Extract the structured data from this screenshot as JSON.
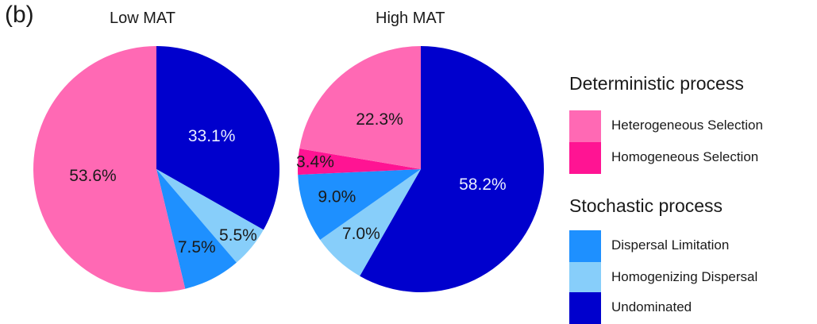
{
  "panel_label": "(b)",
  "colors": {
    "heterogeneous_selection": "#ff69b4",
    "homogeneous_selection": "#ff1493",
    "dispersal_limitation": "#1e90ff",
    "homogenizing_dispersal": "#87cefa",
    "undominated": "#0000cd"
  },
  "legend": {
    "deterministic_title": "Deterministic process",
    "stochastic_title": "Stochastic process",
    "items": [
      {
        "label": "Heterogeneous Selection",
        "color": "#ff69b4"
      },
      {
        "label": "Homogeneous Selection",
        "color": "#ff1493"
      },
      {
        "label": "Dispersal Limitation",
        "color": "#1e90ff"
      },
      {
        "label": "Homogenizing Dispersal",
        "color": "#87cefa"
      },
      {
        "label": "Undominated",
        "color": "#0000cd"
      }
    ]
  },
  "chart_data": [
    {
      "type": "pie",
      "title": "Low MAT",
      "slices": [
        {
          "category": "Undominated",
          "value": 33.1,
          "label": "33.1%",
          "color": "#0000cd",
          "label_color": "#e8eeff"
        },
        {
          "category": "Homogenizing Dispersal",
          "value": 5.5,
          "label": "5.5%",
          "color": "#87cefa",
          "label_color": "#1a1a1a"
        },
        {
          "category": "Dispersal Limitation",
          "value": 7.5,
          "label": "7.5%",
          "color": "#1e90ff",
          "label_color": "#1a1a1a"
        },
        {
          "category": "Heterogeneous Selection",
          "value": 53.6,
          "label": "53.6%",
          "color": "#ff69b4",
          "label_color": "#1a1a1a"
        }
      ]
    },
    {
      "type": "pie",
      "title": "High MAT",
      "slices": [
        {
          "category": "Undominated",
          "value": 58.2,
          "label": "58.2%",
          "color": "#0000cd",
          "label_color": "#e8eeff"
        },
        {
          "category": "Homogenizing Dispersal",
          "value": 7.0,
          "label": "7.0%",
          "color": "#87cefa",
          "label_color": "#1a1a1a"
        },
        {
          "category": "Dispersal Limitation",
          "value": 9.0,
          "label": "9.0%",
          "color": "#1e90ff",
          "label_color": "#1a1a1a"
        },
        {
          "category": "Homogeneous Selection",
          "value": 3.4,
          "label": "3.4%",
          "color": "#ff1493",
          "label_color": "#1a1a1a"
        },
        {
          "category": "Heterogeneous Selection",
          "value": 22.3,
          "label": "22.3%",
          "color": "#ff69b4",
          "label_color": "#1a1a1a"
        }
      ]
    }
  ]
}
